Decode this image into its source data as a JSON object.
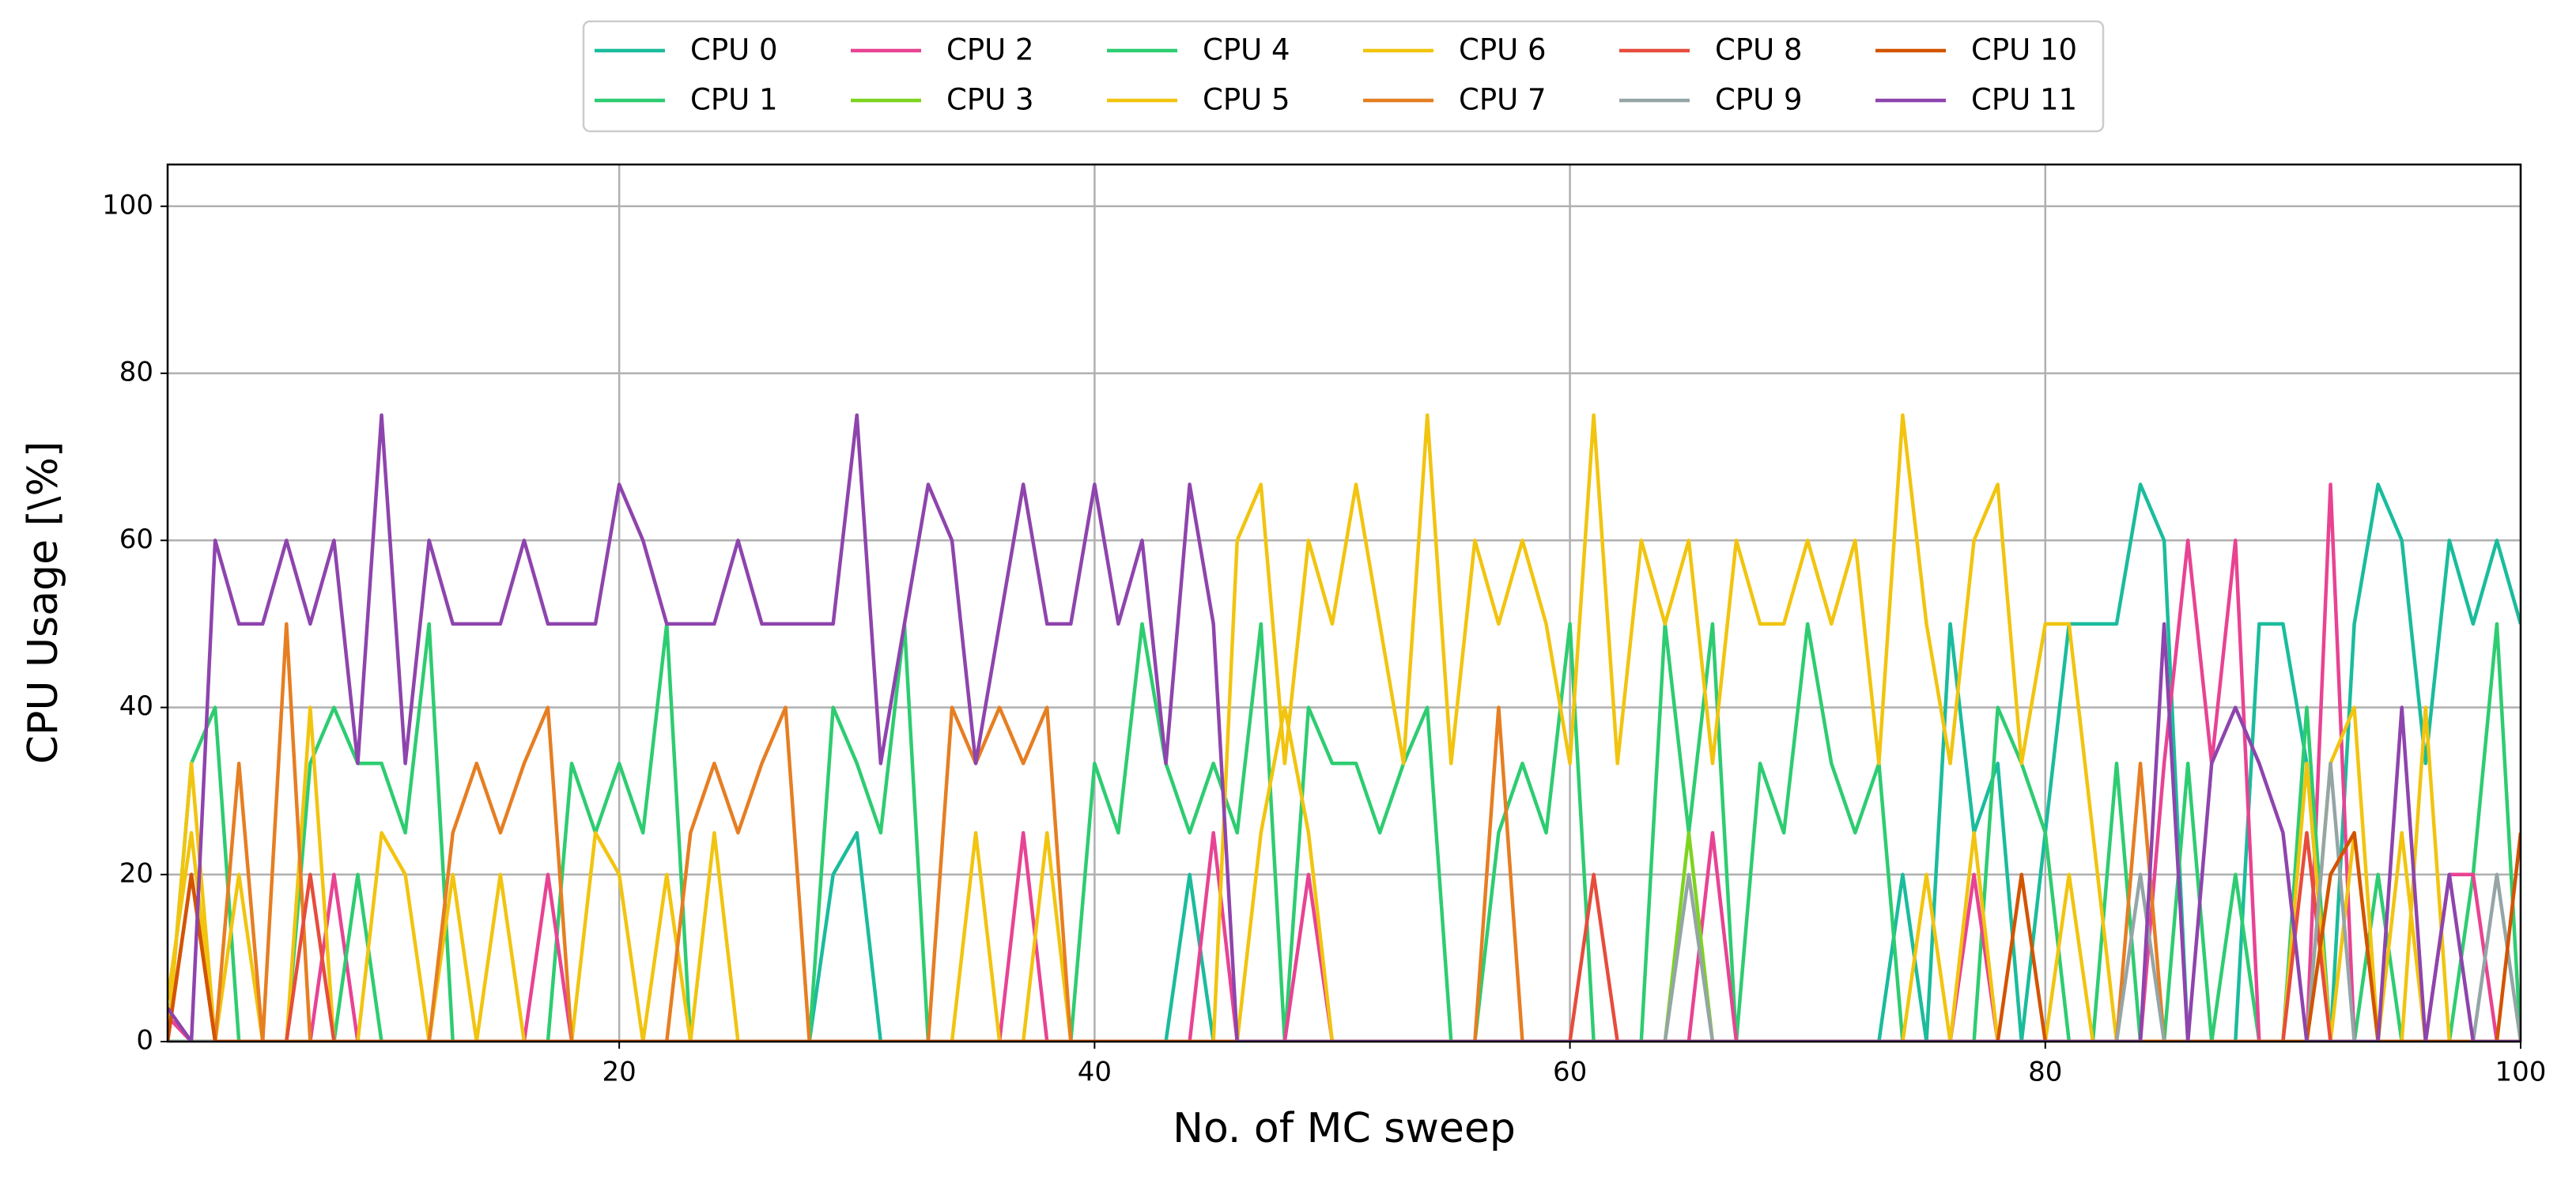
{
  "chart_data": {
    "type": "line",
    "x_label": "No. of MC sweep",
    "y_label": "CPU Usage [\\%]",
    "x": [
      1,
      2,
      3,
      4,
      5,
      6,
      7,
      8,
      9,
      10,
      11,
      12,
      13,
      14,
      15,
      16,
      17,
      18,
      19,
      20,
      21,
      22,
      23,
      24,
      25,
      26,
      27,
      28,
      29,
      30,
      31,
      32,
      33,
      34,
      35,
      36,
      37,
      38,
      39,
      40,
      41,
      42,
      43,
      44,
      45,
      46,
      47,
      48,
      49,
      50,
      51,
      52,
      53,
      54,
      55,
      56,
      57,
      58,
      59,
      60,
      61,
      62,
      63,
      64,
      65,
      66,
      67,
      68,
      69,
      70,
      71,
      72,
      73,
      74,
      75,
      76,
      77,
      78,
      79,
      80,
      81,
      82,
      83,
      84,
      85,
      86,
      87,
      88,
      89,
      90,
      91,
      92,
      93,
      94,
      95,
      96,
      97,
      98,
      99,
      100
    ],
    "xlim": [
      1,
      100
    ],
    "xticks": [
      20,
      40,
      60,
      80,
      100
    ],
    "ylim": [
      0,
      105
    ],
    "yticks": [
      0,
      20,
      40,
      60,
      80,
      100
    ],
    "grid": true,
    "legend": "top",
    "series": [
      {
        "name": "CPU 0",
        "color": "#1abc9c",
        "values": [
          0,
          0,
          0,
          0,
          0,
          0,
          0,
          0,
          0,
          0,
          0,
          0,
          0,
          0,
          0,
          0,
          0,
          0,
          0,
          0,
          0,
          0,
          0,
          0,
          0,
          0,
          0,
          0,
          20,
          25,
          0,
          0,
          0,
          0,
          0,
          0,
          0,
          0,
          0,
          0,
          0,
          0,
          0,
          20,
          0,
          0,
          0,
          0,
          0,
          0,
          0,
          0,
          0,
          0,
          0,
          0,
          0,
          0,
          0,
          0,
          0,
          0,
          0,
          0,
          0,
          0,
          0,
          0,
          0,
          0,
          0,
          0,
          0,
          20,
          0,
          50,
          25,
          33.3,
          0,
          25,
          50,
          50,
          50,
          66.7,
          60,
          0,
          0,
          0,
          50,
          50,
          33.3,
          0,
          50,
          66.7,
          60,
          33.3,
          60,
          50,
          60,
          50
        ]
      },
      {
        "name": "CPU 1",
        "color": "#2ecc71",
        "values": [
          0,
          33.3,
          40,
          0,
          0,
          0,
          33.3,
          40,
          33.3,
          33.3,
          25,
          50,
          0,
          0,
          0,
          0,
          0,
          33.3,
          25,
          33.3,
          25,
          50,
          0,
          0,
          0,
          0,
          0,
          0,
          40,
          33.3,
          25,
          50,
          0,
          0,
          0,
          0,
          0,
          0,
          0,
          33.3,
          25,
          50,
          33.3,
          25,
          33.3,
          25,
          50,
          0,
          40,
          33.3,
          33.3,
          25,
          33.3,
          40,
          0,
          0,
          25,
          33.3,
          25,
          50,
          0,
          0,
          0,
          50,
          25,
          50,
          0,
          33.3,
          25,
          50,
          33.3,
          25,
          33.3,
          0,
          0,
          0,
          0,
          40,
          33.3,
          25,
          0,
          0,
          0,
          0,
          0,
          33.3,
          0,
          20,
          0,
          0,
          0,
          0,
          0,
          20,
          0,
          0,
          0,
          20,
          50,
          0
        ]
      },
      {
        "name": "CPU 2",
        "color": "#e84393",
        "values": [
          3,
          0,
          0,
          0,
          0,
          0,
          0,
          20,
          0,
          0,
          0,
          0,
          0,
          0,
          0,
          0,
          20,
          0,
          0,
          0,
          0,
          0,
          0,
          0,
          0,
          0,
          0,
          0,
          0,
          0,
          0,
          0,
          0,
          0,
          0,
          0,
          25,
          0,
          0,
          0,
          0,
          0,
          0,
          0,
          25,
          0,
          0,
          0,
          20,
          0,
          0,
          0,
          0,
          0,
          0,
          0,
          0,
          0,
          0,
          0,
          0,
          0,
          0,
          0,
          0,
          25,
          0,
          0,
          0,
          0,
          0,
          0,
          0,
          0,
          0,
          0,
          20,
          0,
          0,
          0,
          0,
          0,
          0,
          0,
          33.3,
          60,
          33.3,
          60,
          0,
          0,
          0,
          66.7,
          0,
          0,
          0,
          0,
          20,
          20,
          0,
          0
        ]
      },
      {
        "name": "CPU 3",
        "color": "#7ed321",
        "values": [
          0,
          0,
          0,
          0,
          0,
          0,
          0,
          0,
          0,
          0,
          0,
          0,
          0,
          0,
          0,
          0,
          0,
          0,
          0,
          0,
          0,
          0,
          0,
          0,
          0,
          0,
          0,
          0,
          0,
          0,
          0,
          0,
          0,
          0,
          0,
          0,
          0,
          0,
          0,
          0,
          0,
          0,
          0,
          0,
          0,
          0,
          0,
          0,
          0,
          0,
          0,
          0,
          0,
          0,
          0,
          0,
          0,
          0,
          0,
          0,
          0,
          0,
          0,
          0,
          25,
          0,
          0,
          0,
          0,
          0,
          0,
          0,
          0,
          0,
          0,
          0,
          0,
          0,
          0,
          0,
          0,
          0,
          0,
          0,
          0,
          0,
          0,
          0,
          0,
          0,
          0,
          0,
          0,
          0,
          0,
          0,
          0,
          0,
          0,
          0
        ]
      },
      {
        "name": "CPU 4",
        "color": "#2ecc71",
        "values": [
          0,
          0,
          0,
          0,
          0,
          0,
          0,
          0,
          20,
          0,
          0,
          0,
          0,
          0,
          0,
          0,
          0,
          0,
          0,
          0,
          0,
          0,
          0,
          0,
          0,
          0,
          0,
          0,
          0,
          0,
          0,
          0,
          0,
          0,
          0,
          0,
          0,
          0,
          0,
          0,
          0,
          0,
          0,
          0,
          0,
          0,
          0,
          0,
          0,
          0,
          0,
          0,
          0,
          0,
          0,
          0,
          0,
          0,
          0,
          0,
          0,
          0,
          0,
          0,
          0,
          0,
          0,
          0,
          0,
          0,
          0,
          0,
          0,
          0,
          0,
          0,
          0,
          0,
          0,
          0,
          0,
          0,
          33.3,
          0,
          0,
          0,
          0,
          0,
          0,
          0,
          40,
          0,
          0,
          0,
          0,
          0,
          0,
          0,
          0,
          0
        ]
      },
      {
        "name": "CPU 5",
        "color": "#f1c40f",
        "values": [
          5,
          25,
          0,
          20,
          0,
          0,
          40,
          0,
          0,
          25,
          20,
          0,
          20,
          0,
          20,
          0,
          0,
          0,
          25,
          20,
          0,
          20,
          0,
          25,
          0,
          0,
          0,
          0,
          0,
          0,
          0,
          0,
          0,
          0,
          25,
          0,
          0,
          25,
          0,
          0,
          0,
          0,
          0,
          0,
          0,
          0,
          25,
          40,
          25,
          0,
          0,
          0,
          0,
          0,
          0,
          0,
          0,
          0,
          0,
          0,
          0,
          0,
          0,
          0,
          0,
          0,
          0,
          0,
          0,
          0,
          0,
          0,
          0,
          0,
          20,
          0,
          25,
          0,
          0,
          0,
          20,
          0,
          0,
          0,
          0,
          0,
          0,
          0,
          0,
          0,
          33.3,
          0,
          25,
          0,
          25,
          0,
          0,
          0,
          0,
          0
        ]
      },
      {
        "name": "CPU 6",
        "color": "#f1c40f",
        "values": [
          0,
          33.3,
          0,
          0,
          0,
          0,
          0,
          0,
          0,
          0,
          0,
          0,
          0,
          0,
          0,
          0,
          0,
          0,
          0,
          0,
          0,
          0,
          0,
          0,
          0,
          0,
          0,
          0,
          0,
          0,
          0,
          0,
          0,
          0,
          0,
          0,
          0,
          0,
          0,
          0,
          0,
          0,
          0,
          0,
          0,
          60,
          66.7,
          33.3,
          60,
          50,
          66.7,
          50,
          33.3,
          75,
          33.3,
          60,
          50,
          60,
          50,
          33.3,
          75,
          33.3,
          60,
          50,
          60,
          33.3,
          60,
          50,
          50,
          60,
          50,
          60,
          33.3,
          75,
          50,
          33.3,
          60,
          66.7,
          33.3,
          50,
          50,
          25,
          0,
          0,
          0,
          0,
          0,
          0,
          0,
          0,
          0,
          33.3,
          40,
          0,
          0,
          40,
          0,
          0,
          0,
          0
        ]
      },
      {
        "name": "CPU 7",
        "color": "#e67e22",
        "values": [
          4,
          0,
          0,
          33.3,
          0,
          50,
          0,
          0,
          0,
          0,
          0,
          0,
          25,
          33.3,
          25,
          33.3,
          40,
          0,
          0,
          0,
          0,
          0,
          25,
          33.3,
          25,
          33.3,
          40,
          0,
          0,
          0,
          0,
          0,
          0,
          40,
          33.3,
          40,
          33.3,
          40,
          0,
          0,
          0,
          0,
          0,
          0,
          0,
          0,
          0,
          0,
          0,
          0,
          0,
          0,
          0,
          0,
          0,
          0,
          40,
          0,
          0,
          0,
          0,
          0,
          0,
          0,
          0,
          0,
          0,
          0,
          0,
          0,
          0,
          0,
          0,
          0,
          0,
          0,
          0,
          0,
          0,
          0,
          0,
          0,
          0,
          33.3,
          0,
          0,
          0,
          0,
          0,
          0,
          0,
          0,
          0,
          0,
          0,
          0,
          0,
          0,
          0,
          0
        ]
      },
      {
        "name": "CPU 8",
        "color": "#e74c3c",
        "values": [
          0,
          20,
          0,
          0,
          0,
          0,
          20,
          0,
          0,
          0,
          0,
          0,
          0,
          0,
          0,
          0,
          0,
          0,
          0,
          0,
          0,
          0,
          0,
          0,
          0,
          0,
          0,
          0,
          0,
          0,
          0,
          0,
          0,
          0,
          0,
          0,
          0,
          0,
          0,
          0,
          0,
          0,
          0,
          0,
          0,
          0,
          0,
          0,
          0,
          0,
          0,
          0,
          0,
          0,
          0,
          0,
          0,
          0,
          0,
          0,
          20,
          0,
          0,
          0,
          0,
          0,
          0,
          0,
          0,
          0,
          0,
          0,
          0,
          0,
          0,
          0,
          0,
          0,
          0,
          0,
          0,
          0,
          0,
          0,
          0,
          0,
          0,
          0,
          0,
          0,
          25,
          0,
          0,
          0,
          0,
          0,
          0,
          0,
          0,
          0
        ]
      },
      {
        "name": "CPU 9",
        "color": "#95a5a6",
        "values": [
          0,
          0,
          0,
          0,
          0,
          0,
          0,
          0,
          0,
          0,
          0,
          0,
          0,
          0,
          0,
          0,
          0,
          0,
          0,
          0,
          0,
          0,
          0,
          0,
          0,
          0,
          0,
          0,
          0,
          0,
          0,
          0,
          0,
          0,
          0,
          0,
          0,
          0,
          0,
          0,
          0,
          0,
          0,
          0,
          0,
          0,
          0,
          0,
          0,
          0,
          0,
          0,
          0,
          0,
          0,
          0,
          0,
          0,
          0,
          0,
          0,
          0,
          0,
          0,
          20,
          0,
          0,
          0,
          0,
          0,
          0,
          0,
          0,
          0,
          0,
          0,
          0,
          0,
          0,
          0,
          0,
          0,
          0,
          20,
          0,
          0,
          0,
          0,
          0,
          0,
          0,
          33.3,
          0,
          0,
          0,
          0,
          0,
          0,
          20,
          0
        ]
      },
      {
        "name": "CPU 10",
        "color": "#d35400",
        "values": [
          0,
          20,
          0,
          0,
          0,
          0,
          0,
          0,
          0,
          0,
          0,
          0,
          0,
          0,
          0,
          0,
          0,
          0,
          0,
          0,
          0,
          0,
          0,
          0,
          0,
          0,
          0,
          0,
          0,
          0,
          0,
          0,
          0,
          0,
          0,
          0,
          0,
          0,
          0,
          0,
          0,
          0,
          0,
          0,
          0,
          0,
          0,
          0,
          0,
          0,
          0,
          0,
          0,
          0,
          0,
          0,
          0,
          0,
          0,
          0,
          0,
          0,
          0,
          0,
          0,
          0,
          0,
          0,
          0,
          0,
          0,
          0,
          0,
          0,
          0,
          0,
          0,
          0,
          20,
          0,
          0,
          0,
          0,
          0,
          0,
          0,
          0,
          0,
          0,
          0,
          0,
          20,
          25,
          0,
          0,
          0,
          0,
          0,
          0,
          25
        ]
      },
      {
        "name": "CPU 11",
        "color": "#8e44ad",
        "values": [
          4,
          0,
          60,
          50,
          50,
          60,
          50,
          60,
          33.3,
          75,
          33.3,
          60,
          50,
          50,
          50,
          60,
          50,
          50,
          50,
          66.7,
          60,
          50,
          50,
          50,
          60,
          50,
          50,
          50,
          50,
          75,
          33.3,
          50,
          66.7,
          60,
          33.3,
          50,
          66.7,
          50,
          50,
          66.7,
          50,
          60,
          33.3,
          66.7,
          50,
          0,
          0,
          0,
          0,
          0,
          0,
          0,
          0,
          0,
          0,
          0,
          0,
          0,
          0,
          0,
          0,
          0,
          0,
          0,
          0,
          0,
          0,
          0,
          0,
          0,
          0,
          0,
          0,
          0,
          0,
          0,
          0,
          0,
          0,
          0,
          0,
          0,
          0,
          0,
          50,
          0,
          33.3,
          40,
          33.3,
          25,
          0,
          0,
          0,
          0,
          40,
          0,
          20,
          0,
          0,
          0
        ]
      }
    ]
  }
}
